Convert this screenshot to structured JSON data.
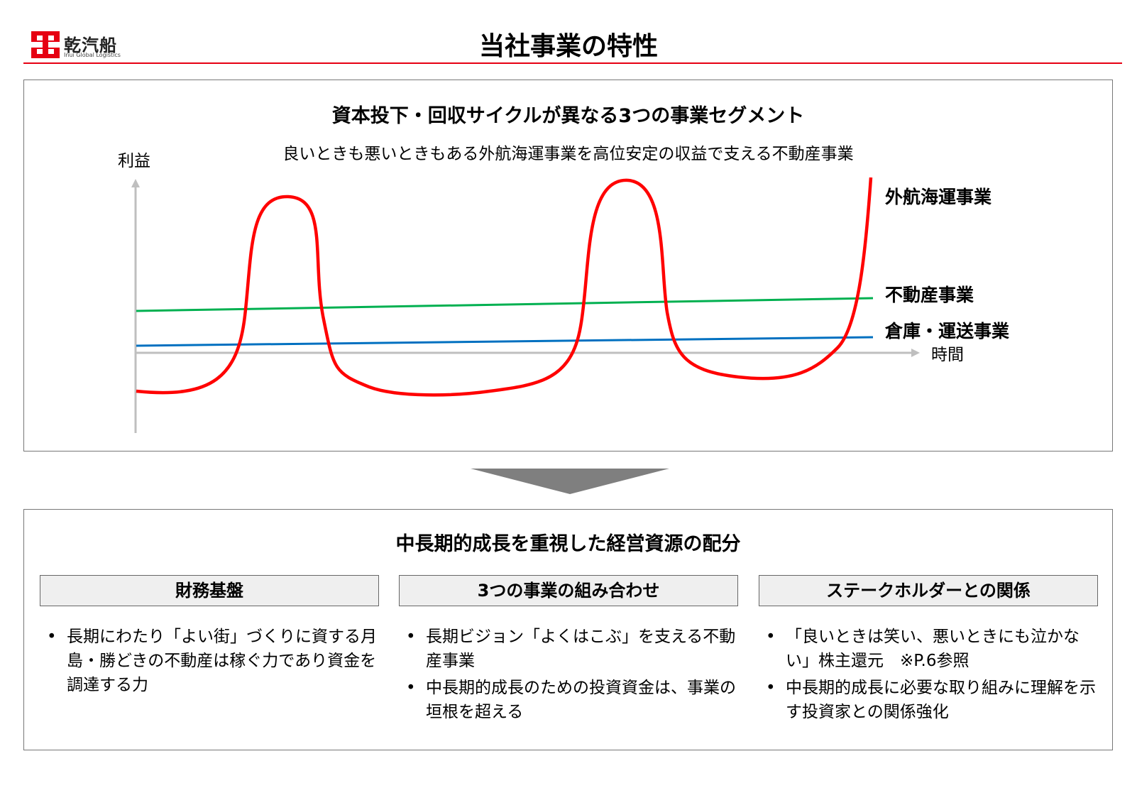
{
  "header": {
    "logo_text": "乾汽船",
    "logo_sub": "Inui Global Logistics",
    "title": "当社事業の特性"
  },
  "colors": {
    "accent_red": "#e60012",
    "shipping_line": "#ff0000",
    "real_estate_line": "#00b050",
    "warehouse_line": "#0070c0",
    "axis": "#bfbfbf",
    "arrow": "#7f7f7f"
  },
  "top_panel": {
    "title": "資本投下・回収サイクルが異なる3つの事業セグメント",
    "subtitle": "良いときも悪いときもある外航海運事業を高位安定の収益で支える不動産事業"
  },
  "chart_data": {
    "type": "line",
    "ylabel": "利益",
    "xlabel": "時間",
    "series": [
      {
        "name": "外航海運事業",
        "color": "#ff0000"
      },
      {
        "name": "不動産事業",
        "color": "#00b050"
      },
      {
        "name": "倉庫・運送事業",
        "color": "#0070c0"
      }
    ]
  },
  "bottom_panel": {
    "title": "中長期的成長を重視した経営資源の配分",
    "columns": [
      {
        "heading": "財務基盤",
        "bullets": [
          "長期にわたり「よい街」づくりに資する月島・勝どきの不動産は稼ぐ力であり資金を調達する力"
        ]
      },
      {
        "heading": "3つの事業の組み合わせ",
        "bullets": [
          "長期ビジョン「よくはこぶ」を支える不動産事業",
          "中長期的成長のための投資資金は、事業の垣根を超える"
        ]
      },
      {
        "heading": "ステークホルダーとの関係",
        "bullets": [
          "「良いときは笑い、悪いときにも泣かない」株主還元　※P.6参照",
          "中長期的成長に必要な取り組みに理解を示す投資家との関係強化"
        ]
      }
    ]
  }
}
